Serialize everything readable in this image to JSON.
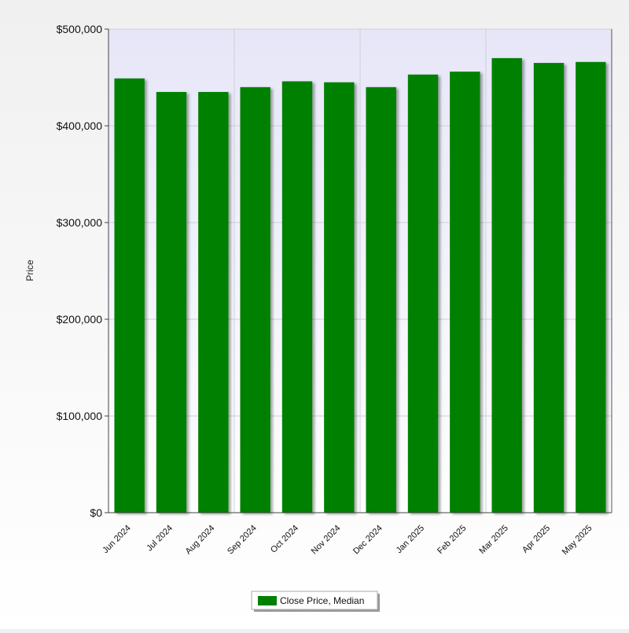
{
  "chart_data": {
    "type": "bar",
    "ylabel": "Price",
    "ylim": [
      0,
      500000
    ],
    "yticks": [
      {
        "value": 0,
        "label": "$0"
      },
      {
        "value": 100000,
        "label": "$100,000"
      },
      {
        "value": 200000,
        "label": "$200,000"
      },
      {
        "value": 300000,
        "label": "$300,000"
      },
      {
        "value": 400000,
        "label": "$400,000"
      },
      {
        "value": 500000,
        "label": "$500,000"
      }
    ],
    "categories": [
      "Jun 2024",
      "Jul 2024",
      "Aug 2024",
      "Sep 2024",
      "Oct 2024",
      "Nov 2024",
      "Dec 2024",
      "Jan 2025",
      "Feb 2025",
      "Mar 2025",
      "Apr 2025",
      "May 2025"
    ],
    "series": [
      {
        "name": "Close Price, Median",
        "color": "#008000",
        "values": [
          449000,
          435000,
          435000,
          440000,
          446000,
          445000,
          440000,
          453000,
          456000,
          470000,
          465000,
          466000
        ]
      }
    ],
    "grid": true,
    "legend_position": "bottom-center"
  }
}
